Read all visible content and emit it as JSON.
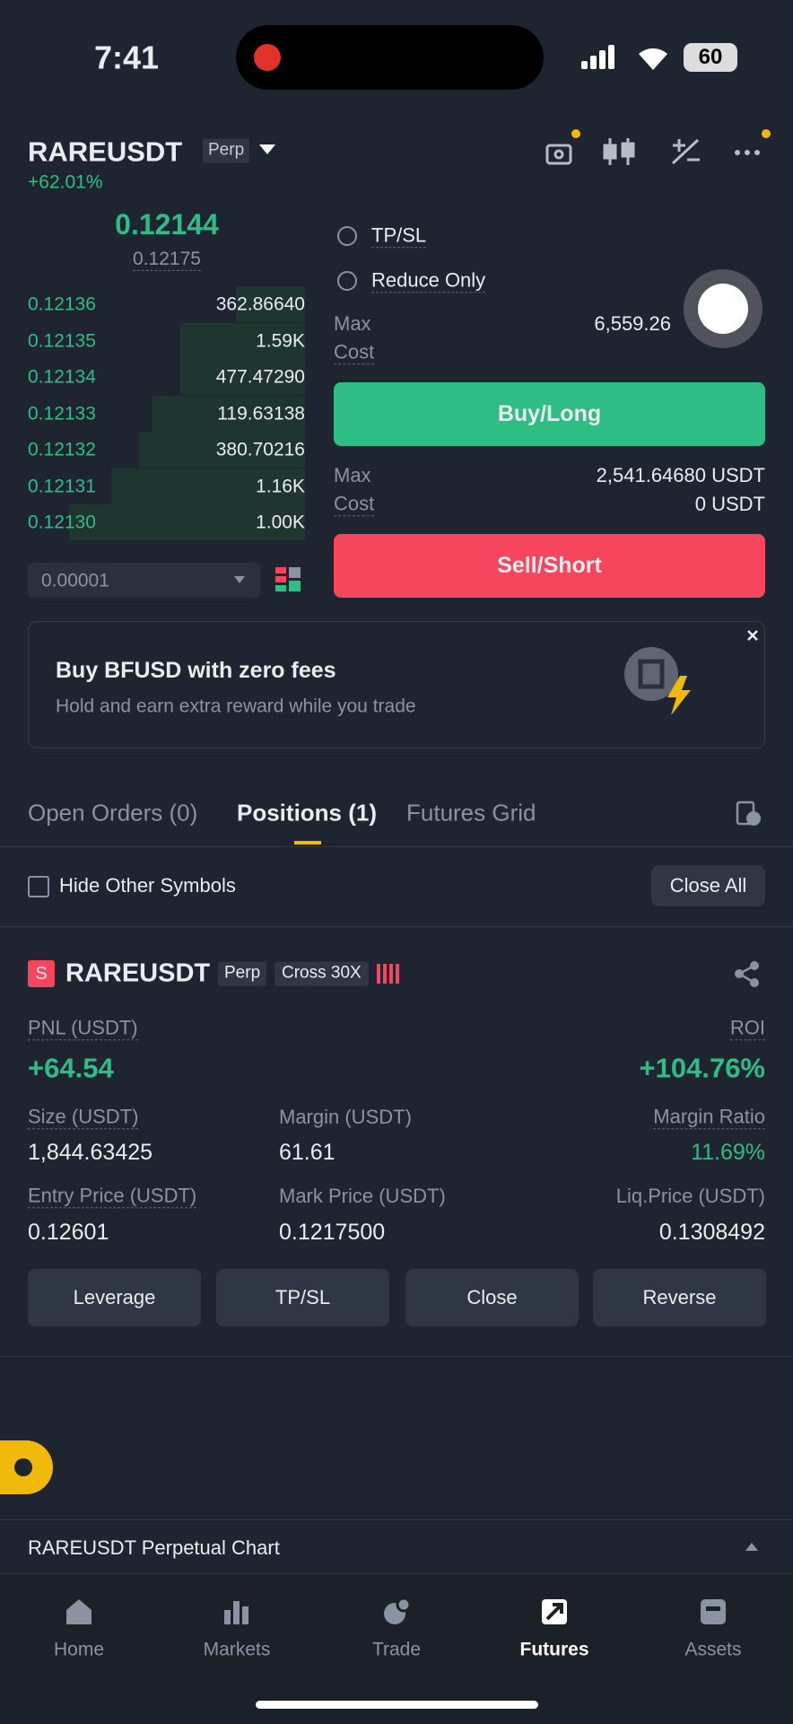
{
  "status_bar": {
    "time": "7:41",
    "battery": "60"
  },
  "header": {
    "symbol": "RAREUSDT",
    "contract_type": "Perp",
    "change": "+62.01%"
  },
  "order_book": {
    "last_price": "0.12144",
    "mark_price": "0.12175",
    "rows": [
      [
        "0.12136",
        "362.86640"
      ],
      [
        "0.12135",
        "1.59K"
      ],
      [
        "0.12134",
        "477.47290"
      ],
      [
        "0.12133",
        "119.63138"
      ],
      [
        "0.12132",
        "380.70216"
      ],
      [
        "0.12131",
        "1.16K"
      ],
      [
        "0.12130",
        "1.00K"
      ]
    ],
    "tick_size": "0.00001"
  },
  "order_form": {
    "tp_sl": "TP/SL",
    "reduce_only": "Reduce Only",
    "long": {
      "max_label": "Max",
      "max_value": "6,559.26",
      "cost_label": "Cost",
      "button": "Buy/Long"
    },
    "short": {
      "max_label": "Max",
      "max_value": "2,541.64680 USDT",
      "cost_label": "Cost",
      "cost_value": "0 USDT",
      "button": "Sell/Short"
    }
  },
  "banner": {
    "title": "Buy BFUSD with zero fees",
    "subtitle": "Hold and earn extra reward while you trade"
  },
  "tabs": [
    "Open Orders (0)",
    "Positions (1)",
    "Futures Grid"
  ],
  "filter": {
    "hide_other": "Hide Other Symbols",
    "close_all": "Close All"
  },
  "position": {
    "side": "S",
    "symbol": "RAREUSDT",
    "contract_type": "Perp",
    "margin_mode": "Cross 30X",
    "pnl": {
      "label": "PNL (USDT)",
      "value": "+64.54"
    },
    "roi": {
      "label": "ROI",
      "value": "+104.76%"
    },
    "size": {
      "label": "Size (USDT)",
      "value": "1,844.63425"
    },
    "margin": {
      "label": "Margin (USDT)",
      "value": "61.61"
    },
    "margin_ratio": {
      "label": "Margin Ratio",
      "value": "11.69%"
    },
    "entry_price": {
      "label": "Entry Price (USDT)",
      "value": "0.12601"
    },
    "mark_price": {
      "label": "Mark Price (USDT)",
      "value": "0.1217500"
    },
    "liq_price": {
      "label": "Liq.Price (USDT)",
      "value": "0.1308492"
    },
    "actions": [
      "Leverage",
      "TP/SL",
      "Close",
      "Reverse"
    ]
  },
  "chart_bar": "RAREUSDT Perpetual  Chart",
  "nav": [
    "Home",
    "Markets",
    "Trade",
    "Futures",
    "Assets"
  ]
}
